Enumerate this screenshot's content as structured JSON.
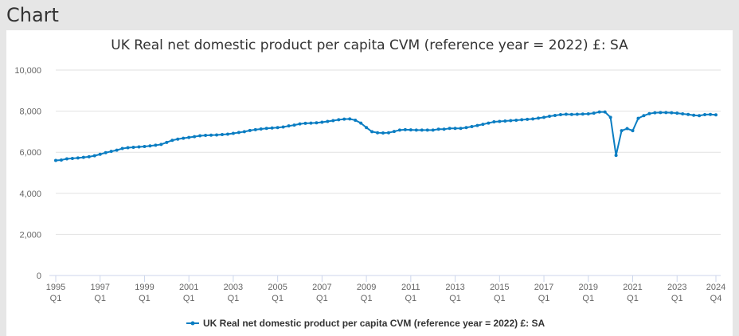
{
  "header": {
    "title": "Chart"
  },
  "chart_data": {
    "type": "line",
    "title": "UK Real net domestic product per capita CVM (reference year = 2022) £: SA",
    "xlabel": "",
    "ylabel": "",
    "ylim": [
      0,
      10000
    ],
    "yticks": [
      0,
      2000,
      4000,
      6000,
      8000,
      10000
    ],
    "ytick_labels": [
      "0",
      "2,000",
      "4,000",
      "6,000",
      "8,000",
      "10,000"
    ],
    "xtick_labels": [
      [
        "1995",
        "Q1"
      ],
      [
        "1997",
        "Q1"
      ],
      [
        "1999",
        "Q1"
      ],
      [
        "2001",
        "Q1"
      ],
      [
        "2003",
        "Q1"
      ],
      [
        "2005",
        "Q1"
      ],
      [
        "2007",
        "Q1"
      ],
      [
        "2009",
        "Q1"
      ],
      [
        "2011",
        "Q1"
      ],
      [
        "2013",
        "Q1"
      ],
      [
        "2015",
        "Q1"
      ],
      [
        "2017",
        "Q1"
      ],
      [
        "2019",
        "Q1"
      ],
      [
        "2021",
        "Q1"
      ],
      [
        "2023",
        "Q1"
      ],
      [
        "2024",
        "Q4"
      ]
    ],
    "xtick_index": [
      0,
      8,
      16,
      24,
      32,
      40,
      48,
      56,
      64,
      72,
      80,
      88,
      96,
      104,
      112,
      119
    ],
    "x_start": "1995 Q1",
    "x_end": "2024 Q4",
    "grid": true,
    "legend": "bottom-center",
    "series": [
      {
        "name": "UK Real net domestic product per capita CVM (reference year = 2022) £: SA",
        "color": "#0a7dc2",
        "values": [
          5600,
          5620,
          5680,
          5700,
          5720,
          5750,
          5780,
          5830,
          5900,
          5980,
          6040,
          6100,
          6180,
          6220,
          6240,
          6260,
          6280,
          6310,
          6340,
          6380,
          6480,
          6580,
          6640,
          6680,
          6720,
          6760,
          6800,
          6820,
          6830,
          6840,
          6860,
          6880,
          6920,
          6960,
          7000,
          7060,
          7100,
          7130,
          7160,
          7180,
          7200,
          7230,
          7280,
          7320,
          7380,
          7410,
          7420,
          7430,
          7460,
          7500,
          7540,
          7580,
          7610,
          7620,
          7560,
          7420,
          7200,
          7000,
          6950,
          6940,
          6950,
          7010,
          7080,
          7100,
          7090,
          7080,
          7080,
          7080,
          7080,
          7120,
          7120,
          7160,
          7160,
          7160,
          7200,
          7250,
          7300,
          7360,
          7420,
          7480,
          7500,
          7520,
          7540,
          7560,
          7580,
          7600,
          7620,
          7660,
          7700,
          7750,
          7790,
          7830,
          7850,
          7840,
          7850,
          7860,
          7870,
          7900,
          7960,
          7960,
          7700,
          5850,
          7050,
          7150,
          7050,
          7650,
          7780,
          7880,
          7920,
          7930,
          7930,
          7920,
          7900,
          7870,
          7840,
          7800,
          7780,
          7830,
          7840,
          7820
        ]
      }
    ]
  }
}
